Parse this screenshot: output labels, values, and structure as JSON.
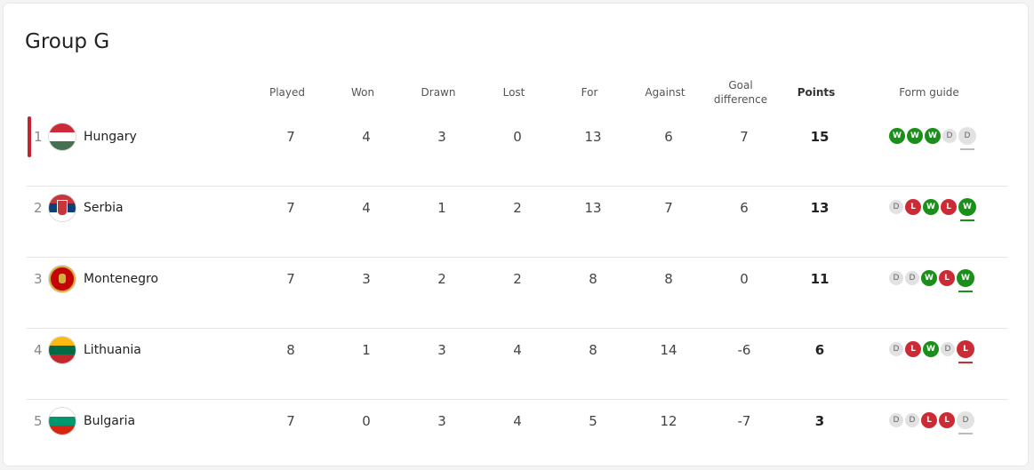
{
  "title": "Group G",
  "headers": {
    "played": "Played",
    "won": "Won",
    "drawn": "Drawn",
    "lost": "Lost",
    "for": "For",
    "against": "Against",
    "gd": "Goal difference",
    "points": "Points",
    "form": "Form guide"
  },
  "colors": {
    "win": "#1a8f1a",
    "loss": "#cc2b36",
    "draw": "#e2e2e2",
    "highlight": "#c4242f"
  },
  "rows": [
    {
      "pos": "1",
      "team": "Hungary",
      "flag": "hungary",
      "played": "7",
      "won": "4",
      "drawn": "3",
      "lost": "0",
      "for": "13",
      "against": "6",
      "gd": "7",
      "points": "15",
      "form": [
        "W",
        "W",
        "W",
        "D",
        "D"
      ],
      "highlight": true
    },
    {
      "pos": "2",
      "team": "Serbia",
      "flag": "serbia",
      "played": "7",
      "won": "4",
      "drawn": "1",
      "lost": "2",
      "for": "13",
      "against": "7",
      "gd": "6",
      "points": "13",
      "form": [
        "D",
        "L",
        "W",
        "L",
        "W"
      ]
    },
    {
      "pos": "3",
      "team": "Montenegro",
      "flag": "montenegro",
      "played": "7",
      "won": "3",
      "drawn": "2",
      "lost": "2",
      "for": "8",
      "against": "8",
      "gd": "0",
      "points": "11",
      "form": [
        "D",
        "D",
        "W",
        "L",
        "W"
      ]
    },
    {
      "pos": "4",
      "team": "Lithuania",
      "flag": "lithuania",
      "played": "8",
      "won": "1",
      "drawn": "3",
      "lost": "4",
      "for": "8",
      "against": "14",
      "gd": "-6",
      "points": "6",
      "form": [
        "D",
        "L",
        "W",
        "D",
        "L"
      ]
    },
    {
      "pos": "5",
      "team": "Bulgaria",
      "flag": "bulgaria",
      "played": "7",
      "won": "0",
      "drawn": "3",
      "lost": "4",
      "for": "5",
      "against": "12",
      "gd": "-7",
      "points": "3",
      "form": [
        "D",
        "D",
        "L",
        "L",
        "D"
      ]
    }
  ]
}
